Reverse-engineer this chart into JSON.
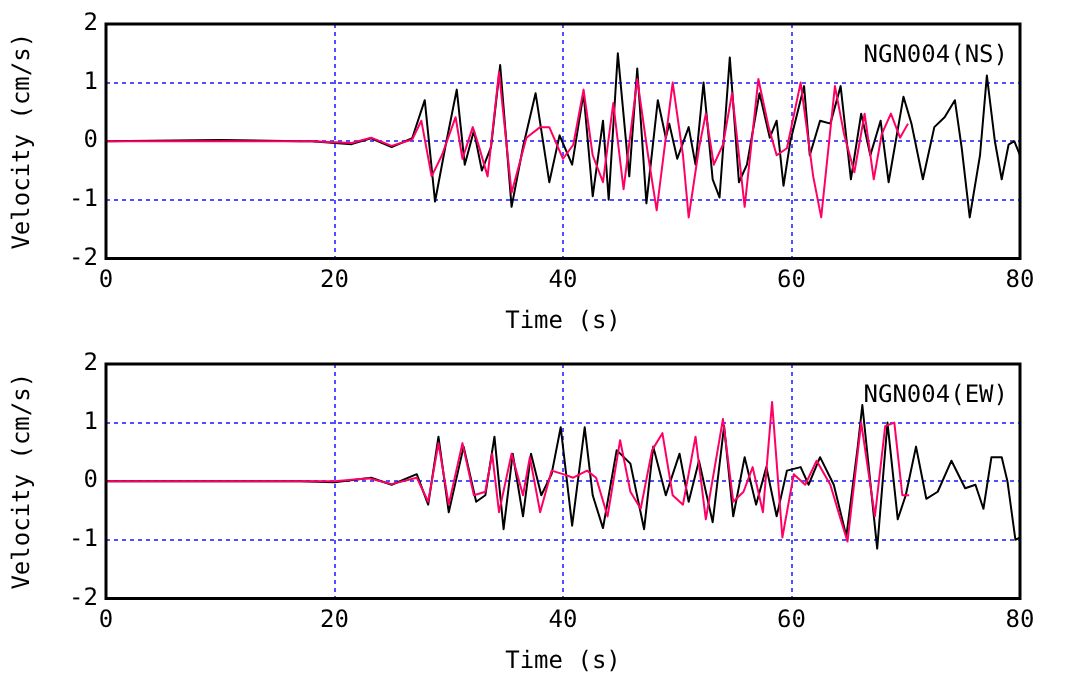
{
  "chart_data": [
    {
      "type": "line",
      "xlabel": "Time (s)",
      "ylabel": "Velocity (cm/s)",
      "annotations": [
        "NGN004(NS)"
      ],
      "xlim": [
        0,
        80
      ],
      "xticks": [
        0,
        20,
        40,
        60,
        80
      ],
      "ylim": [
        -2,
        2
      ],
      "yticks": [
        -2,
        -1,
        0,
        1,
        2
      ],
      "grid": true,
      "marker": "none",
      "line_style": "solid",
      "series": [
        {
          "color": "#000000",
          "x": [
            0,
            10,
            17,
            18,
            21.5,
            23.2,
            25,
            26.8,
            27.9,
            28.8,
            29.7,
            30.7,
            31.4,
            32.2,
            32.9,
            33.7,
            34.5,
            35.5,
            36.5,
            37.6,
            38.8,
            39.7,
            40.8,
            41.8,
            42.6,
            43.5,
            44,
            44.8,
            45.8,
            46.5,
            47.3,
            48.3,
            49,
            49.3,
            50,
            51,
            51.6,
            52.3,
            53.1,
            53.7,
            54.6,
            55.4,
            56.1,
            57.2,
            58.1,
            58.7,
            59.3,
            59.9,
            61.1,
            61.6,
            62.5,
            63.4,
            64.3,
            65.2,
            66.1,
            66.9,
            67.8,
            68.5,
            69.8,
            70.5,
            71.5,
            72.5,
            73.4,
            74.3,
            74.9,
            75.6,
            76.5,
            77.1,
            77.8,
            78.4,
            79,
            79.5,
            80
          ],
          "values": [
            0,
            0.02,
            0,
            0,
            -0.05,
            0.05,
            -0.1,
            0.05,
            0.7,
            -1.03,
            -0.1,
            0.88,
            -0.4,
            0.18,
            -0.5,
            -0.1,
            1.3,
            -1.12,
            -0.1,
            0.82,
            -0.7,
            0.1,
            -0.4,
            0.82,
            -0.94,
            0.35,
            -1,
            1.5,
            -0.6,
            1.24,
            -1.06,
            0.7,
            0.06,
            0.3,
            -0.3,
            0.24,
            -0.4,
            1,
            -0.65,
            -0.96,
            1.43,
            -0.7,
            -0.4,
            0.82,
            0.06,
            0.35,
            -0.76,
            0,
            0.94,
            -0.24,
            0.35,
            0.3,
            0.94,
            -0.65,
            0.47,
            -0.24,
            0.35,
            -0.7,
            0.76,
            0.3,
            -0.65,
            0.24,
            0.41,
            0.7,
            -0.12,
            -1.3,
            -0.24,
            1.12,
            0,
            -0.65,
            -0.06,
            0,
            -0.24
          ]
        },
        {
          "color": "#ff0066",
          "x": [
            0,
            10,
            17,
            18,
            21.5,
            23.2,
            25,
            26.8,
            27.6,
            28.5,
            29.4,
            30.6,
            31.2,
            32.1,
            32.6,
            33.4,
            34.4,
            35.5,
            36.8,
            38,
            38.8,
            40,
            40.9,
            41.8,
            42.6,
            43.5,
            44.4,
            45.3,
            46.5,
            47.4,
            48.2,
            49.6,
            50.5,
            51,
            51.9,
            52.5,
            53.2,
            54,
            54.8,
            55.9,
            57.1,
            58,
            58.7,
            59.6,
            60.8,
            61.9,
            62.6,
            63.8,
            64.6,
            65.5,
            66.4,
            67.2,
            67.9,
            68.7,
            69.5,
            70.2
          ],
          "values": [
            0,
            0,
            0,
            0,
            -0.03,
            0.06,
            -0.08,
            0.03,
            0.35,
            -0.6,
            -0.24,
            0.41,
            -0.3,
            0.24,
            -0.06,
            -0.6,
            1.18,
            -0.88,
            0.06,
            0.24,
            0.24,
            -0.3,
            -0.06,
            0.88,
            -0.24,
            -0.7,
            0.65,
            -0.82,
            1.06,
            -0.18,
            -1.18,
            1,
            -0.24,
            -1.3,
            -0.12,
            0.47,
            -0.4,
            -0.06,
            0.82,
            -1.12,
            1.06,
            0.24,
            -0.24,
            -0.12,
            1,
            -0.6,
            -1.3,
            0.94,
            0.12,
            -0.53,
            0.47,
            -0.65,
            0.12,
            0.47,
            0.06,
            0.3
          ]
        }
      ]
    },
    {
      "type": "line",
      "xlabel": "Time (s)",
      "ylabel": "Velocity (cm/s)",
      "annotations": [
        "NGN004(EW)"
      ],
      "xlim": [
        0,
        80
      ],
      "xticks": [
        0,
        20,
        40,
        60,
        80
      ],
      "ylim": [
        -2,
        2
      ],
      "yticks": [
        -2,
        -1,
        0,
        1,
        2
      ],
      "grid": true,
      "marker": "none",
      "line_style": "solid",
      "series": [
        {
          "color": "#000000",
          "x": [
            0,
            10,
            17,
            20,
            23.2,
            25,
            27.2,
            28.2,
            29.1,
            30,
            31.3,
            32.4,
            33.2,
            34,
            34.8,
            35.6,
            36.5,
            37.2,
            38.1,
            39,
            39.8,
            40.8,
            41.9,
            42.6,
            43.5,
            44.7,
            45.9,
            47.1,
            47.9,
            49,
            50.2,
            51,
            51.9,
            53.1,
            54.1,
            54.9,
            55.9,
            56.9,
            57.8,
            58.7,
            59.6,
            60.8,
            61.5,
            62.5,
            63.7,
            64.8,
            65.8,
            66.2,
            67.5,
            68.4,
            69.3,
            70,
            70.9,
            71.8,
            72.8,
            74,
            75.2,
            76.1,
            76.8,
            77.5,
            78.4,
            78.9,
            79.6,
            80
          ],
          "values": [
            0,
            0,
            0,
            -0.02,
            0.06,
            -0.06,
            0.12,
            -0.4,
            0.76,
            -0.53,
            0.59,
            -0.35,
            -0.24,
            0.76,
            -0.82,
            0.47,
            -0.6,
            0.47,
            -0.24,
            0.12,
            0.92,
            -0.76,
            0.92,
            -0.24,
            -0.8,
            0.53,
            0.3,
            -0.82,
            0.59,
            -0.24,
            0.47,
            -0.35,
            0.35,
            -0.7,
            0.94,
            -0.6,
            0.41,
            -0.4,
            0.24,
            -0.6,
            0.18,
            0.24,
            -0.06,
            0.41,
            -0.06,
            -0.94,
            0.59,
            1.3,
            -1.15,
            1,
            -0.65,
            -0.24,
            0.59,
            -0.3,
            -0.18,
            0.35,
            -0.12,
            -0.06,
            -0.47,
            0.41,
            0.41,
            0,
            -1,
            -0.96
          ]
        },
        {
          "color": "#ff0066",
          "x": [
            0,
            17,
            20,
            23,
            25,
            27.2,
            28.2,
            29.1,
            30,
            31.2,
            32.2,
            33.2,
            33.8,
            34.4,
            35.5,
            36.5,
            37.1,
            38,
            39,
            40,
            40.9,
            42.1,
            42.9,
            43.9,
            45,
            45.9,
            46.8,
            47.8,
            48.7,
            49.6,
            50.5,
            51.6,
            52.5,
            54,
            54.9,
            55.8,
            56.6,
            57.5,
            58.3,
            59.2,
            60.2,
            61.2,
            62.2,
            63.4,
            64.3,
            64.9,
            66.1,
            67.3,
            68.2,
            69,
            69.7,
            70.3
          ],
          "values": [
            0,
            0,
            0,
            0.05,
            -0.05,
            0.06,
            -0.35,
            0.65,
            -0.4,
            0.65,
            -0.24,
            -0.18,
            0.47,
            -0.53,
            0.47,
            -0.24,
            0.41,
            -0.53,
            0.18,
            0.12,
            0.06,
            0.18,
            0.06,
            -0.6,
            0.7,
            -0.18,
            -0.47,
            0.53,
            0.82,
            -0.24,
            -0.4,
            0.76,
            -0.65,
            1.06,
            -0.35,
            -0.18,
            0.24,
            -0.53,
            1.35,
            -0.96,
            0.12,
            -0.06,
            0.35,
            -0.06,
            -0.65,
            -1.03,
            1,
            -0.6,
            0.94,
            1,
            -0.24,
            -0.24
          ]
        }
      ]
    }
  ]
}
